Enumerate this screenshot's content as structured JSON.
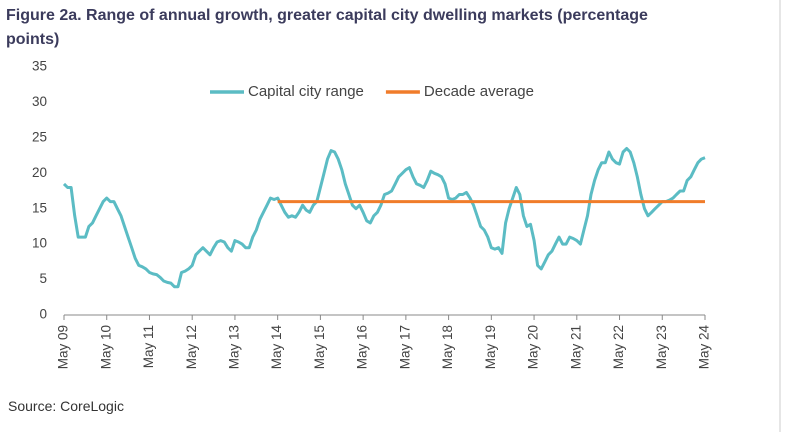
{
  "chart_data": {
    "type": "line",
    "title": "Figure 2a. Range of annual growth, greater capital city dwelling markets (percentage points)",
    "source": "Source: CoreLogic",
    "categories": [
      "May 09",
      null,
      null,
      null,
      null,
      null,
      null,
      null,
      null,
      null,
      null,
      null,
      "May 10",
      null,
      null,
      null,
      null,
      null,
      null,
      null,
      null,
      null,
      null,
      null,
      "May 11",
      null,
      null,
      null,
      null,
      null,
      null,
      null,
      null,
      null,
      null,
      null,
      "May 12",
      null,
      null,
      null,
      null,
      null,
      null,
      null,
      null,
      null,
      null,
      null,
      "May 13",
      null,
      null,
      null,
      null,
      null,
      null,
      null,
      null,
      null,
      null,
      null,
      "May 14",
      null,
      null,
      null,
      null,
      null,
      null,
      null,
      null,
      null,
      null,
      null,
      "May 15",
      null,
      null,
      null,
      null,
      null,
      null,
      null,
      null,
      null,
      null,
      null,
      "May 16",
      null,
      null,
      null,
      null,
      null,
      null,
      null,
      null,
      null,
      null,
      null,
      "May 17",
      null,
      null,
      null,
      null,
      null,
      null,
      null,
      null,
      null,
      null,
      null,
      "May 18",
      null,
      null,
      null,
      null,
      null,
      null,
      null,
      null,
      null,
      null,
      null,
      "May 19",
      null,
      null,
      null,
      null,
      null,
      null,
      null,
      null,
      null,
      null,
      null,
      "May 20",
      null,
      null,
      null,
      null,
      null,
      null,
      null,
      null,
      null,
      null,
      null,
      "May 21",
      null,
      null,
      null,
      null,
      null,
      null,
      null,
      null,
      null,
      null,
      null,
      "May 22",
      null,
      null,
      null,
      null,
      null,
      null,
      null,
      null,
      null,
      null,
      null,
      "May 23",
      null,
      null,
      null,
      null,
      null,
      null,
      null,
      null,
      null,
      null,
      null,
      "May 24"
    ],
    "series": [
      {
        "name": "Capital city range",
        "color": "#5bbcc4",
        "values": [
          18.5,
          18,
          18,
          14,
          11,
          11,
          11,
          12.5,
          13,
          14,
          15,
          16,
          16.5,
          16,
          16,
          15,
          14,
          12.5,
          11,
          9.5,
          8,
          7,
          6.8,
          6.5,
          6,
          5.8,
          5.7,
          5.3,
          4.8,
          4.6,
          4.5,
          4,
          4,
          6,
          6.2,
          6.5,
          7,
          8.5,
          9,
          9.5,
          9,
          8.5,
          9.5,
          10.3,
          10.5,
          10.3,
          9.5,
          9,
          10.5,
          10.3,
          10,
          9.5,
          9.5,
          11,
          12,
          13.5,
          14.5,
          15.5,
          16.5,
          16.3,
          16.5,
          15.5,
          14.5,
          13.8,
          14,
          13.8,
          14.5,
          15.5,
          14.8,
          14.5,
          15.5,
          16,
          18,
          20,
          22,
          23.2,
          23,
          22,
          20.5,
          18.5,
          17,
          15.5,
          15,
          15.5,
          14.5,
          13.3,
          13,
          14,
          14.5,
          15.5,
          17,
          17.2,
          17.5,
          18.5,
          19.5,
          20,
          20.5,
          20.8,
          19.5,
          18.5,
          18.3,
          18,
          19,
          20.3,
          20,
          19.8,
          19.5,
          18.5,
          16.5,
          16.3,
          16.5,
          17,
          17,
          17.3,
          16.5,
          15.5,
          14,
          12.5,
          12,
          11,
          9.5,
          9.3,
          9.5,
          8.7,
          13,
          15,
          16.5,
          18,
          17,
          14,
          12.5,
          12.8,
          10.5,
          7,
          6.5,
          7.5,
          8.5,
          9,
          10,
          11,
          10,
          10,
          11,
          10.8,
          10.5,
          10,
          12,
          14,
          17,
          19,
          20.5,
          21.5,
          21.5,
          23,
          22,
          21.5,
          21.3,
          23,
          23.5,
          23,
          21.5,
          19.5,
          17,
          15,
          14,
          14.5,
          15,
          15.5,
          16,
          16,
          16.2,
          16.5,
          17,
          17.5,
          17.5,
          19,
          19.5,
          20.5,
          21.5,
          22,
          22.2
        ]
      },
      {
        "name": "Decade average",
        "color": "#f07c2a",
        "values": [
          null,
          null,
          null,
          null,
          null,
          null,
          null,
          null,
          null,
          null,
          null,
          null,
          null,
          null,
          null,
          null,
          null,
          null,
          null,
          null,
          null,
          null,
          null,
          null,
          null,
          null,
          null,
          null,
          null,
          null,
          null,
          null,
          null,
          null,
          null,
          null,
          null,
          null,
          null,
          null,
          null,
          null,
          null,
          null,
          null,
          null,
          null,
          null,
          null,
          null,
          null,
          null,
          null,
          null,
          null,
          null,
          null,
          null,
          null,
          null,
          16,
          16,
          16,
          16,
          16,
          16,
          16,
          16,
          16,
          16,
          16,
          16,
          16,
          16,
          16,
          16,
          16,
          16,
          16,
          16,
          16,
          16,
          16,
          16,
          16,
          16,
          16,
          16,
          16,
          16,
          16,
          16,
          16,
          16,
          16,
          16,
          16,
          16,
          16,
          16,
          16,
          16,
          16,
          16,
          16,
          16,
          16,
          16,
          16,
          16,
          16,
          16,
          16,
          16,
          16,
          16,
          16,
          16,
          16,
          16,
          16,
          16,
          16,
          16,
          16,
          16,
          16,
          16,
          16,
          16,
          16,
          16,
          16,
          16,
          16,
          16,
          16,
          16,
          16,
          16,
          16,
          16,
          16,
          16,
          16,
          16,
          16,
          16,
          16,
          16,
          16,
          16,
          16,
          16,
          16,
          16,
          16,
          16,
          16,
          16,
          16,
          16,
          16,
          16,
          16,
          16,
          16,
          16,
          16,
          16,
          16,
          16,
          16,
          16,
          16,
          16,
          16,
          16,
          16,
          16,
          16
        ]
      }
    ],
    "ylim": [
      0,
      35
    ],
    "yticks": [
      0,
      5,
      10,
      15,
      20,
      25,
      30,
      35
    ],
    "grid": false,
    "legend": "top"
  }
}
